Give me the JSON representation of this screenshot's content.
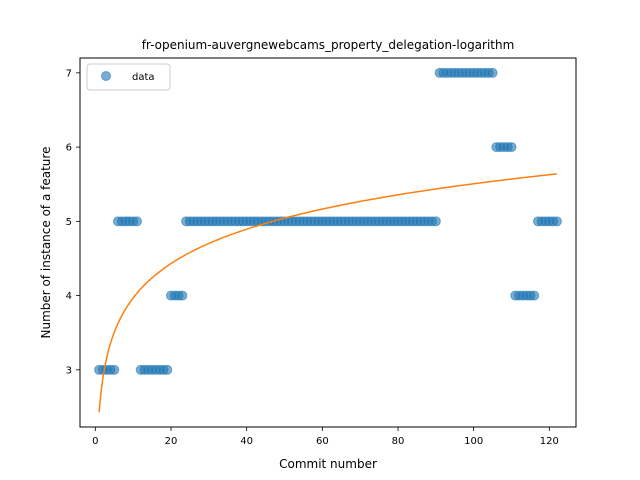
{
  "chart_data": {
    "type": "scatter",
    "title": "fr-openium-auvergnewebcams_property_delegation-logarithm",
    "xlabel": "Commit number",
    "ylabel": "Number of instance of a feature",
    "xlim": [
      -4.05,
      127.05
    ],
    "ylim": [
      2.23,
      7.2
    ],
    "xticks": [
      0,
      20,
      40,
      60,
      80,
      100,
      120
    ],
    "yticks": [
      3,
      4,
      5,
      6,
      7
    ],
    "grid": false,
    "legend": {
      "placement": "top-left",
      "entries": [
        "data"
      ]
    },
    "series": [
      {
        "name": "data",
        "kind": "scatter",
        "color": "#1f77b4",
        "points": [
          [
            1,
            3
          ],
          [
            2,
            3
          ],
          [
            3,
            3
          ],
          [
            4,
            3
          ],
          [
            5,
            3
          ],
          [
            6,
            5
          ],
          [
            7,
            5
          ],
          [
            8,
            5
          ],
          [
            9,
            5
          ],
          [
            10,
            5
          ],
          [
            11,
            5
          ],
          [
            12,
            3
          ],
          [
            13,
            3
          ],
          [
            14,
            3
          ],
          [
            15,
            3
          ],
          [
            16,
            3
          ],
          [
            17,
            3
          ],
          [
            18,
            3
          ],
          [
            19,
            3
          ],
          [
            20,
            4
          ],
          [
            21,
            4
          ],
          [
            22,
            4
          ],
          [
            23,
            4
          ],
          [
            24,
            5
          ],
          [
            25,
            5
          ],
          [
            26,
            5
          ],
          [
            27,
            5
          ],
          [
            28,
            5
          ],
          [
            29,
            5
          ],
          [
            30,
            5
          ],
          [
            31,
            5
          ],
          [
            32,
            5
          ],
          [
            33,
            5
          ],
          [
            34,
            5
          ],
          [
            35,
            5
          ],
          [
            36,
            5
          ],
          [
            37,
            5
          ],
          [
            38,
            5
          ],
          [
            39,
            5
          ],
          [
            40,
            5
          ],
          [
            41,
            5
          ],
          [
            42,
            5
          ],
          [
            43,
            5
          ],
          [
            44,
            5
          ],
          [
            45,
            5
          ],
          [
            46,
            5
          ],
          [
            47,
            5
          ],
          [
            48,
            5
          ],
          [
            49,
            5
          ],
          [
            50,
            5
          ],
          [
            51,
            5
          ],
          [
            52,
            5
          ],
          [
            53,
            5
          ],
          [
            54,
            5
          ],
          [
            55,
            5
          ],
          [
            56,
            5
          ],
          [
            57,
            5
          ],
          [
            58,
            5
          ],
          [
            59,
            5
          ],
          [
            60,
            5
          ],
          [
            61,
            5
          ],
          [
            62,
            5
          ],
          [
            63,
            5
          ],
          [
            64,
            5
          ],
          [
            65,
            5
          ],
          [
            66,
            5
          ],
          [
            67,
            5
          ],
          [
            68,
            5
          ],
          [
            69,
            5
          ],
          [
            70,
            5
          ],
          [
            71,
            5
          ],
          [
            72,
            5
          ],
          [
            73,
            5
          ],
          [
            74,
            5
          ],
          [
            75,
            5
          ],
          [
            76,
            5
          ],
          [
            77,
            5
          ],
          [
            78,
            5
          ],
          [
            79,
            5
          ],
          [
            80,
            5
          ],
          [
            81,
            5
          ],
          [
            82,
            5
          ],
          [
            83,
            5
          ],
          [
            84,
            5
          ],
          [
            85,
            5
          ],
          [
            86,
            5
          ],
          [
            87,
            5
          ],
          [
            88,
            5
          ],
          [
            89,
            5
          ],
          [
            90,
            5
          ],
          [
            91,
            7
          ],
          [
            92,
            7
          ],
          [
            93,
            7
          ],
          [
            94,
            7
          ],
          [
            95,
            7
          ],
          [
            96,
            7
          ],
          [
            97,
            7
          ],
          [
            98,
            7
          ],
          [
            99,
            7
          ],
          [
            100,
            7
          ],
          [
            101,
            7
          ],
          [
            102,
            7
          ],
          [
            103,
            7
          ],
          [
            104,
            7
          ],
          [
            105,
            7
          ],
          [
            106,
            6
          ],
          [
            107,
            6
          ],
          [
            108,
            6
          ],
          [
            109,
            6
          ],
          [
            110,
            6
          ],
          [
            111,
            4
          ],
          [
            112,
            4
          ],
          [
            113,
            4
          ],
          [
            114,
            4
          ],
          [
            115,
            4
          ],
          [
            116,
            4
          ],
          [
            117,
            5
          ],
          [
            118,
            5
          ],
          [
            119,
            5
          ],
          [
            120,
            5
          ],
          [
            121,
            5
          ],
          [
            122,
            5
          ]
        ]
      },
      {
        "kind": "line",
        "color": "#ff7f0e",
        "fit": {
          "model": "a + b*ln(x)",
          "a": 2.43,
          "b": 0.668,
          "x_range": [
            1,
            122
          ]
        }
      }
    ]
  }
}
